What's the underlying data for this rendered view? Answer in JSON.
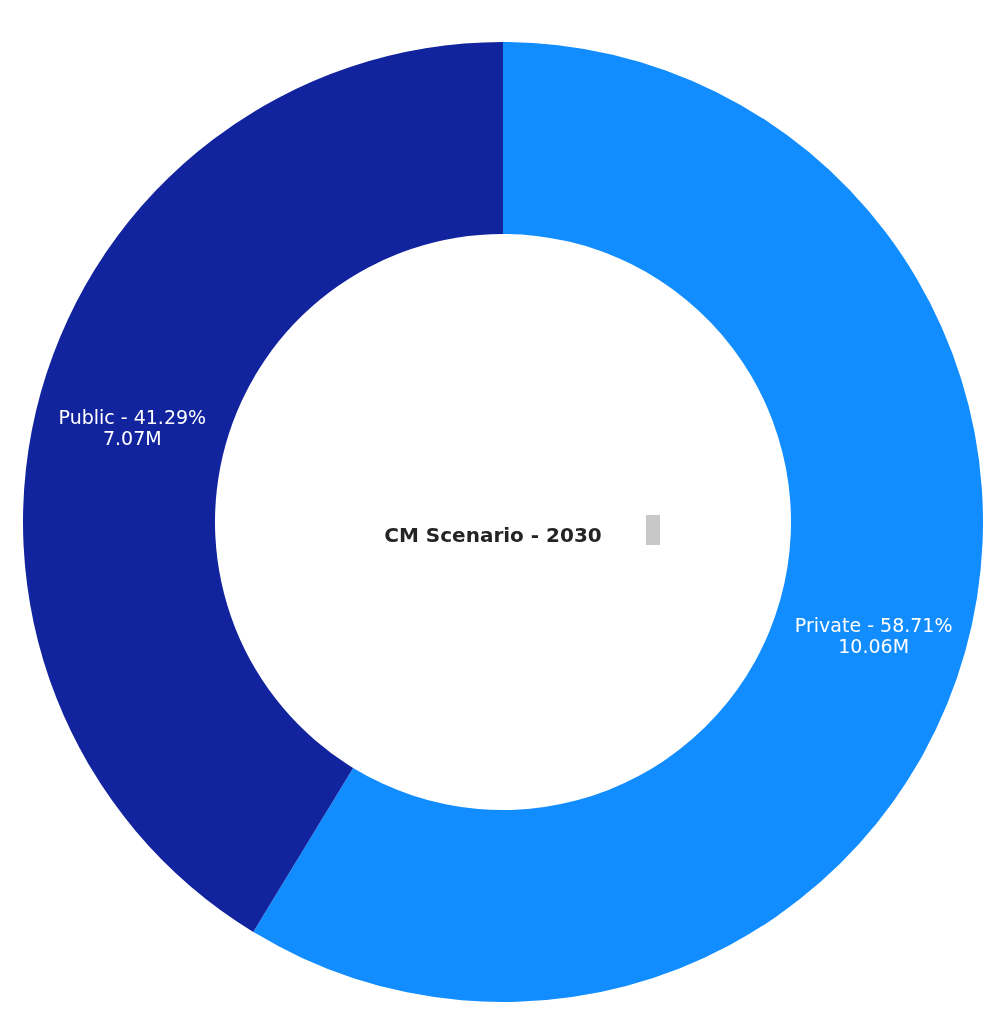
{
  "chart_data": {
    "type": "donut",
    "title": "CM Scenario  - 2030",
    "categories": [
      "Private",
      "Public"
    ],
    "values": [
      58.71,
      41.29
    ],
    "colors": [
      "#118dff",
      "#12239e"
    ],
    "value_labels": [
      "58.71%\n10.06M",
      "41.29%\n7.07M"
    ]
  }
}
